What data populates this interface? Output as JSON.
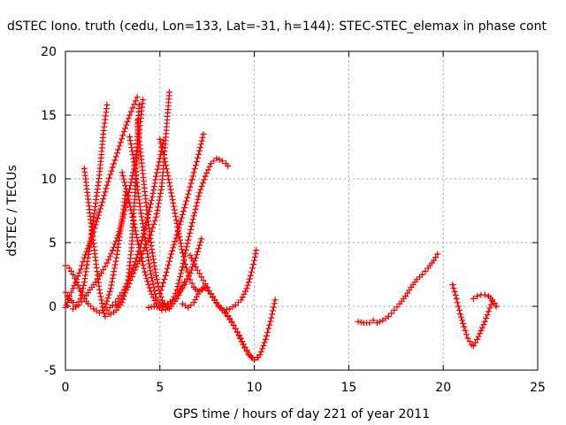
{
  "chart_data": {
    "type": "scatter",
    "title": "dSTEC Iono. truth (cedu, Lon=133, Lat=-31, h=144): STEC-STEC_elemax in phase cont",
    "xlabel": "GPS time / hours of day 221 of year 2011",
    "ylabel": "dSTEC  / TECUs",
    "xlim": [
      0,
      25
    ],
    "ylim": [
      -5,
      20
    ],
    "x_ticks": [
      0,
      5,
      10,
      15,
      20,
      25
    ],
    "y_ticks": [
      -5,
      0,
      5,
      10,
      15,
      20
    ],
    "grid": true,
    "legend": "none",
    "marker": "plus",
    "color": "#ff0000",
    "series": [
      {
        "x": [
          0.0,
          0.1,
          0.2,
          0.4,
          0.6,
          0.8,
          1.0,
          1.3,
          1.6,
          1.9,
          2.2,
          2.5,
          2.8,
          3.1,
          3.4,
          3.8
        ],
        "y": [
          -0.1,
          0.3,
          0.8,
          1.4,
          2.1,
          2.9,
          3.8,
          5.0,
          6.4,
          7.9,
          9.5,
          10.9,
          12.3,
          13.7,
          15.0,
          16.4
        ]
      },
      {
        "x": [
          0.0,
          0.2,
          0.4,
          0.6,
          0.8,
          1.0,
          1.2,
          1.5,
          1.8,
          2.0,
          2.2
        ],
        "y": [
          1.1,
          0.6,
          0.3,
          0.1,
          0.6,
          1.9,
          3.8,
          7.0,
          10.3,
          13.5,
          15.8
        ]
      },
      {
        "x": [
          0.0,
          0.2,
          0.4,
          0.6,
          0.8,
          1.0,
          1.2,
          1.5,
          1.8,
          2.1,
          2.4,
          2.7,
          3.0,
          3.2
        ],
        "y": [
          3.2,
          3.0,
          2.5,
          1.9,
          1.2,
          0.6,
          0.2,
          -0.2,
          -0.5,
          -0.1,
          1.4,
          3.8,
          6.8,
          9.0
        ]
      },
      {
        "x": [
          1.0,
          1.2,
          1.4,
          1.6,
          1.8,
          2.0,
          2.1,
          2.3
        ],
        "y": [
          10.8,
          8.4,
          6.0,
          3.6,
          1.3,
          -0.3,
          -0.8,
          -0.6
        ]
      },
      {
        "x": [
          0.4,
          0.7,
          1.0,
          1.3,
          1.6,
          1.9,
          2.2,
          2.5,
          2.8,
          3.1,
          3.4,
          3.7,
          3.9,
          4.1
        ],
        "y": [
          -0.2,
          0.1,
          0.6,
          1.3,
          1.9,
          2.6,
          3.4,
          4.4,
          5.6,
          7.2,
          9.2,
          11.3,
          13.6,
          16.2
        ]
      },
      {
        "x": [
          2.2,
          2.5,
          2.8,
          3.1,
          3.4,
          3.7,
          4.0,
          4.3,
          4.6,
          4.8,
          5.0,
          5.2
        ],
        "y": [
          -0.3,
          0.1,
          0.6,
          1.3,
          2.3,
          3.5,
          4.9,
          6.6,
          8.6,
          10.2,
          11.6,
          13.0
        ]
      },
      {
        "x": [
          2.4,
          2.7,
          3.0,
          3.3,
          3.5,
          3.7,
          3.9
        ],
        "y": [
          -0.6,
          -0.3,
          0.3,
          1.8,
          4.6,
          9.2,
          15.8
        ]
      },
      {
        "x": [
          3.8,
          4.0,
          4.2,
          4.4,
          4.6,
          4.8,
          5.0,
          5.2,
          5.4
        ],
        "y": [
          14.6,
          11.8,
          9.0,
          6.4,
          4.2,
          2.4,
          1.0,
          0.2,
          -0.1
        ]
      },
      {
        "x": [
          2.7,
          3.0,
          3.3,
          3.6,
          3.9,
          4.2,
          4.5,
          4.8,
          5.1,
          5.3,
          5.5
        ],
        "y": [
          0.0,
          0.6,
          1.5,
          2.6,
          3.6,
          4.6,
          5.6,
          7.0,
          9.4,
          13.0,
          16.8
        ]
      },
      {
        "x": [
          3.0,
          3.3,
          3.6,
          3.9,
          4.2,
          4.5,
          4.8,
          5.1,
          5.5,
          5.9,
          6.3
        ],
        "y": [
          10.5,
          8.7,
          6.7,
          4.6,
          2.7,
          1.2,
          0.2,
          -0.3,
          -0.2,
          0.6,
          1.9
        ]
      },
      {
        "x": [
          3.4,
          3.6,
          3.8,
          4.0,
          4.2,
          4.4,
          4.6,
          4.8,
          5.1,
          5.4,
          5.7,
          6.0,
          6.3,
          6.6,
          6.9,
          7.2
        ],
        "y": [
          13.3,
          11.6,
          9.4,
          7.3,
          5.4,
          3.6,
          2.0,
          0.7,
          0.1,
          0.2,
          0.5,
          1.0,
          1.7,
          2.6,
          3.8,
          5.3
        ]
      },
      {
        "x": [
          4.4,
          4.7,
          5.0,
          5.3,
          5.6,
          5.9,
          6.2,
          6.5,
          6.8,
          7.1,
          7.4,
          7.7,
          8.0,
          8.3,
          8.5,
          8.6
        ],
        "y": [
          -0.1,
          0.0,
          -0.1,
          -0.1,
          0.2,
          1.3,
          3.1,
          5.2,
          7.1,
          8.9,
          10.2,
          11.2,
          11.6,
          11.4,
          11.2,
          11.0
        ]
      },
      {
        "x": [
          5.0,
          5.2,
          5.4,
          5.6,
          5.8,
          6.0,
          6.2,
          6.4,
          6.6,
          6.8,
          7.0,
          7.2,
          7.4
        ],
        "y": [
          13.1,
          11.9,
          10.5,
          8.9,
          7.3,
          5.7,
          4.2,
          3.0,
          2.1,
          1.5,
          1.2,
          1.3,
          1.6
        ]
      },
      {
        "x": [
          5.0,
          5.3,
          5.6,
          5.9,
          6.2,
          6.5,
          6.8,
          7.1,
          7.3
        ],
        "y": [
          1.0,
          2.4,
          4.1,
          5.6,
          7.2,
          8.8,
          10.5,
          12.2,
          13.5
        ]
      },
      {
        "x": [
          6.2,
          6.5,
          6.8,
          7.1,
          7.4,
          7.7,
          8.0,
          8.3,
          8.6,
          8.9,
          9.2,
          9.5,
          9.8,
          10.0,
          10.2
        ],
        "y": [
          0.2,
          -0.1,
          0.3,
          1.2,
          1.4,
          1.0,
          0.3,
          -0.3,
          -0.8,
          -1.5,
          -2.3,
          -3.2,
          -3.9,
          -4.2,
          -4.0
        ]
      },
      {
        "x": [
          6.6,
          6.9,
          7.2,
          7.5,
          7.8,
          8.1,
          8.4,
          8.7,
          9.0,
          9.3,
          9.6,
          9.8,
          10.0,
          10.1
        ],
        "y": [
          4.0,
          3.1,
          2.3,
          1.5,
          0.7,
          0.0,
          -0.3,
          -0.2,
          0.1,
          0.5,
          1.4,
          2.4,
          3.6,
          4.4
        ]
      },
      {
        "x": [
          8.5,
          8.8,
          9.1,
          9.4,
          9.7,
          10.0,
          10.3,
          10.6,
          10.9,
          11.1
        ],
        "y": [
          -0.5,
          -1.2,
          -2.0,
          -3.0,
          -3.8,
          -4.2,
          -3.8,
          -2.6,
          -0.9,
          0.5
        ]
      },
      {
        "x": [
          15.5,
          15.8,
          16.1,
          16.3,
          16.5,
          16.8,
          17.1,
          17.4,
          17.7,
          18.0,
          18.3,
          18.6,
          18.9,
          19.2,
          19.5,
          19.7
        ],
        "y": [
          -1.2,
          -1.3,
          -1.3,
          -1.1,
          -1.3,
          -1.1,
          -0.8,
          -0.3,
          0.2,
          0.8,
          1.5,
          2.1,
          2.5,
          3.0,
          3.6,
          4.1
        ]
      },
      {
        "x": [
          20.5,
          20.7,
          20.9,
          21.1,
          21.3,
          21.5,
          21.6,
          21.8,
          22.0,
          22.2,
          22.4,
          22.6,
          22.8
        ],
        "y": [
          1.7,
          0.6,
          -0.6,
          -1.6,
          -2.5,
          -3.0,
          -3.1,
          -2.6,
          -1.9,
          -1.2,
          -0.4,
          0.4,
          0.0
        ]
      },
      {
        "x": [
          21.6,
          21.8,
          22.0,
          22.2,
          22.4,
          22.6,
          22.8
        ],
        "y": [
          0.6,
          0.8,
          0.9,
          0.9,
          0.8,
          0.5,
          0.0
        ]
      }
    ]
  }
}
